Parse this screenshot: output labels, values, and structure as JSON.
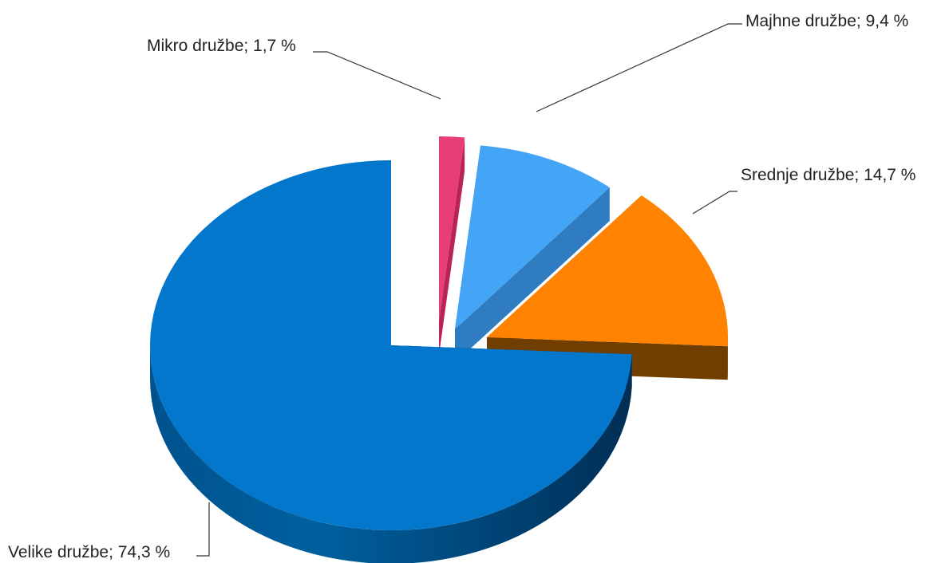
{
  "chart_data": {
    "type": "pie",
    "style": "3d-exploded",
    "categories": [
      "Velike družbe",
      "Mikro družbe",
      "Majhne družbe",
      "Srednje družbe"
    ],
    "values": [
      74.3,
      1.7,
      9.4,
      14.7
    ],
    "labels": [
      "Velike družbe; 74,3 %",
      "Mikro družbe; 1,7 %",
      "Majhne družbe; 9,4 %",
      "Srednje družbe; 14,7 %"
    ],
    "colors": [
      "#0277cc",
      "#e83e77",
      "#44a4f5",
      "#ff8200"
    ],
    "side_colors": [
      "#004a80",
      "#b8235a",
      "#2f7dc0",
      "#703e00"
    ],
    "title": ""
  }
}
